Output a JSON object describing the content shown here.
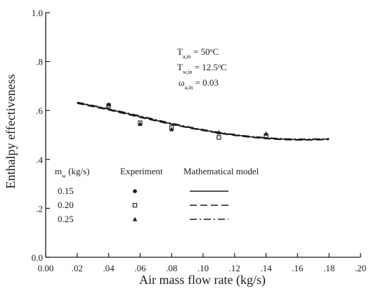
{
  "chart_data": {
    "type": "scatter",
    "xlabel": "Air mass flow rate (kg/s)",
    "ylabel": "Enthalpy effectiveness",
    "xlim": [
      0.0,
      0.2
    ],
    "ylim": [
      0.0,
      1.0
    ],
    "x_ticks": [
      0.0,
      0.02,
      0.04,
      0.06,
      0.08,
      0.1,
      0.12,
      0.14,
      0.16,
      0.18,
      0.2
    ],
    "x_tick_labels": [
      "0.00",
      ".02",
      ".04",
      ".06",
      ".08",
      ".10",
      ".12",
      ".14",
      ".16",
      ".18",
      ".20"
    ],
    "y_ticks": [
      0.0,
      0.2,
      0.4,
      0.6,
      0.8,
      1.0
    ],
    "y_tick_labels": [
      "0.0",
      ".2",
      ".4",
      ".6",
      ".8",
      "1.0"
    ],
    "grid": false,
    "conditions": [
      {
        "base": "T",
        "sub": "a,in",
        "rest": " = 50",
        "sup": "o",
        "unit": "C"
      },
      {
        "base": "T",
        "sub": "w,in",
        "rest": " = 12.5",
        "sup": "o",
        "unit": "C"
      },
      {
        "base": "ω",
        "sub": "a,in",
        "rest": " = 0.03",
        "sup": "",
        "unit": ""
      }
    ],
    "legend": {
      "placement": "bottom-left",
      "header_param": {
        "base": "m",
        "sub": "w",
        "rest": " (kg/s)"
      },
      "header_experiment": "Experiment",
      "header_model": "Mathematical model",
      "rows": [
        {
          "label": "0.15",
          "marker": "circle",
          "dash": "solid"
        },
        {
          "label": "0.20",
          "marker": "square",
          "dash": "dashed"
        },
        {
          "label": "0.25",
          "marker": "triangle",
          "dash": "dashdot"
        }
      ]
    },
    "series": [
      {
        "label": "0.15",
        "marker": "circle",
        "x": [
          0.04,
          0.06,
          0.08,
          0.11,
          0.14
        ],
        "y": [
          0.622,
          0.545,
          0.527,
          0.49,
          0.49
        ]
      },
      {
        "label": "0.20",
        "marker": "square",
        "x": [
          0.04,
          0.06,
          0.08,
          0.11,
          0.14
        ],
        "y": [
          0.62,
          0.55,
          0.53,
          0.49,
          0.497
        ]
      },
      {
        "label": "0.25",
        "marker": "triangle",
        "x": [
          0.04,
          0.06,
          0.08,
          0.11,
          0.14
        ],
        "y": [
          0.625,
          0.545,
          0.523,
          0.51,
          0.505
        ]
      }
    ],
    "model_curves": [
      {
        "label": "0.15",
        "dash": "solid",
        "x": [
          0.02,
          0.04,
          0.06,
          0.08,
          0.1,
          0.12,
          0.14,
          0.16,
          0.18
        ],
        "y": [
          0.632,
          0.605,
          0.575,
          0.545,
          0.52,
          0.5,
          0.487,
          0.481,
          0.483
        ]
      },
      {
        "label": "0.20",
        "dash": "dashed",
        "x": [
          0.02,
          0.04,
          0.06,
          0.08,
          0.1,
          0.12,
          0.14,
          0.16,
          0.18
        ],
        "y": [
          0.629,
          0.602,
          0.572,
          0.543,
          0.518,
          0.498,
          0.485,
          0.479,
          0.481
        ]
      },
      {
        "label": "0.25",
        "dash": "dashdot",
        "x": [
          0.02,
          0.04,
          0.06,
          0.08,
          0.1,
          0.12,
          0.14,
          0.16,
          0.18
        ],
        "y": [
          0.634,
          0.607,
          0.578,
          0.548,
          0.522,
          0.502,
          0.489,
          0.483,
          0.485
        ]
      }
    ]
  }
}
